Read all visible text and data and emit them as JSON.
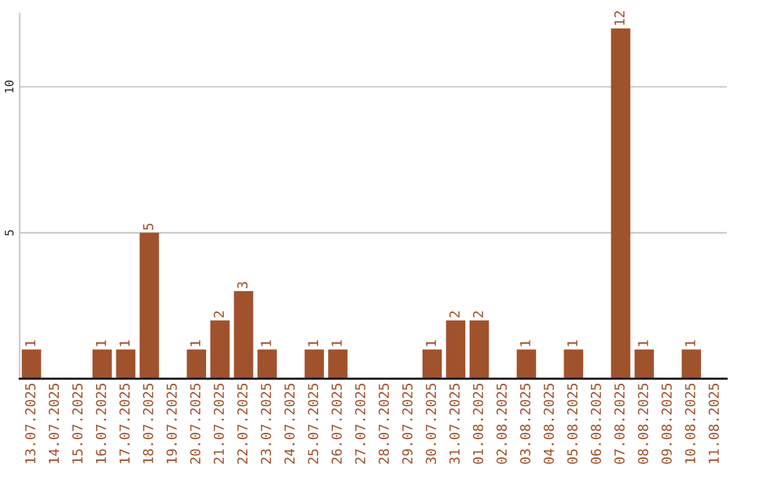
{
  "chart_data": {
    "type": "bar",
    "categories": [
      "13.07.2025",
      "14.07.2025",
      "15.07.2025",
      "16.07.2025",
      "17.07.2025",
      "18.07.2025",
      "19.07.2025",
      "20.07.2025",
      "21.07.2025",
      "22.07.2025",
      "23.07.2025",
      "24.07.2025",
      "25.07.2025",
      "26.07.2025",
      "27.07.2025",
      "28.07.2025",
      "29.07.2025",
      "30.07.2025",
      "31.07.2025",
      "01.08.2025",
      "02.08.2025",
      "03.08.2025",
      "04.08.2025",
      "05.08.2025",
      "06.08.2025",
      "07.08.2025",
      "08.08.2025",
      "09.08.2025",
      "10.08.2025",
      "11.08.2025"
    ],
    "values": [
      1,
      0,
      0,
      1,
      1,
      5,
      0,
      1,
      2,
      3,
      1,
      0,
      1,
      1,
      0,
      0,
      0,
      1,
      2,
      2,
      0,
      1,
      0,
      1,
      0,
      12,
      1,
      0,
      1,
      0
    ],
    "value_labels": [
      "1",
      null,
      null,
      "1",
      "1",
      "5",
      null,
      "1",
      "2",
      "3",
      "1",
      null,
      "1",
      "1",
      null,
      null,
      null,
      "1",
      "2",
      "2",
      null,
      "1",
      null,
      "1",
      null,
      "12",
      "1",
      null,
      "1",
      null
    ],
    "color": "#a0522d",
    "ylim": [
      0,
      12.5
    ],
    "yticks": [
      {
        "value": 0,
        "label": null
      },
      5,
      10
    ],
    "grid": "y"
  }
}
